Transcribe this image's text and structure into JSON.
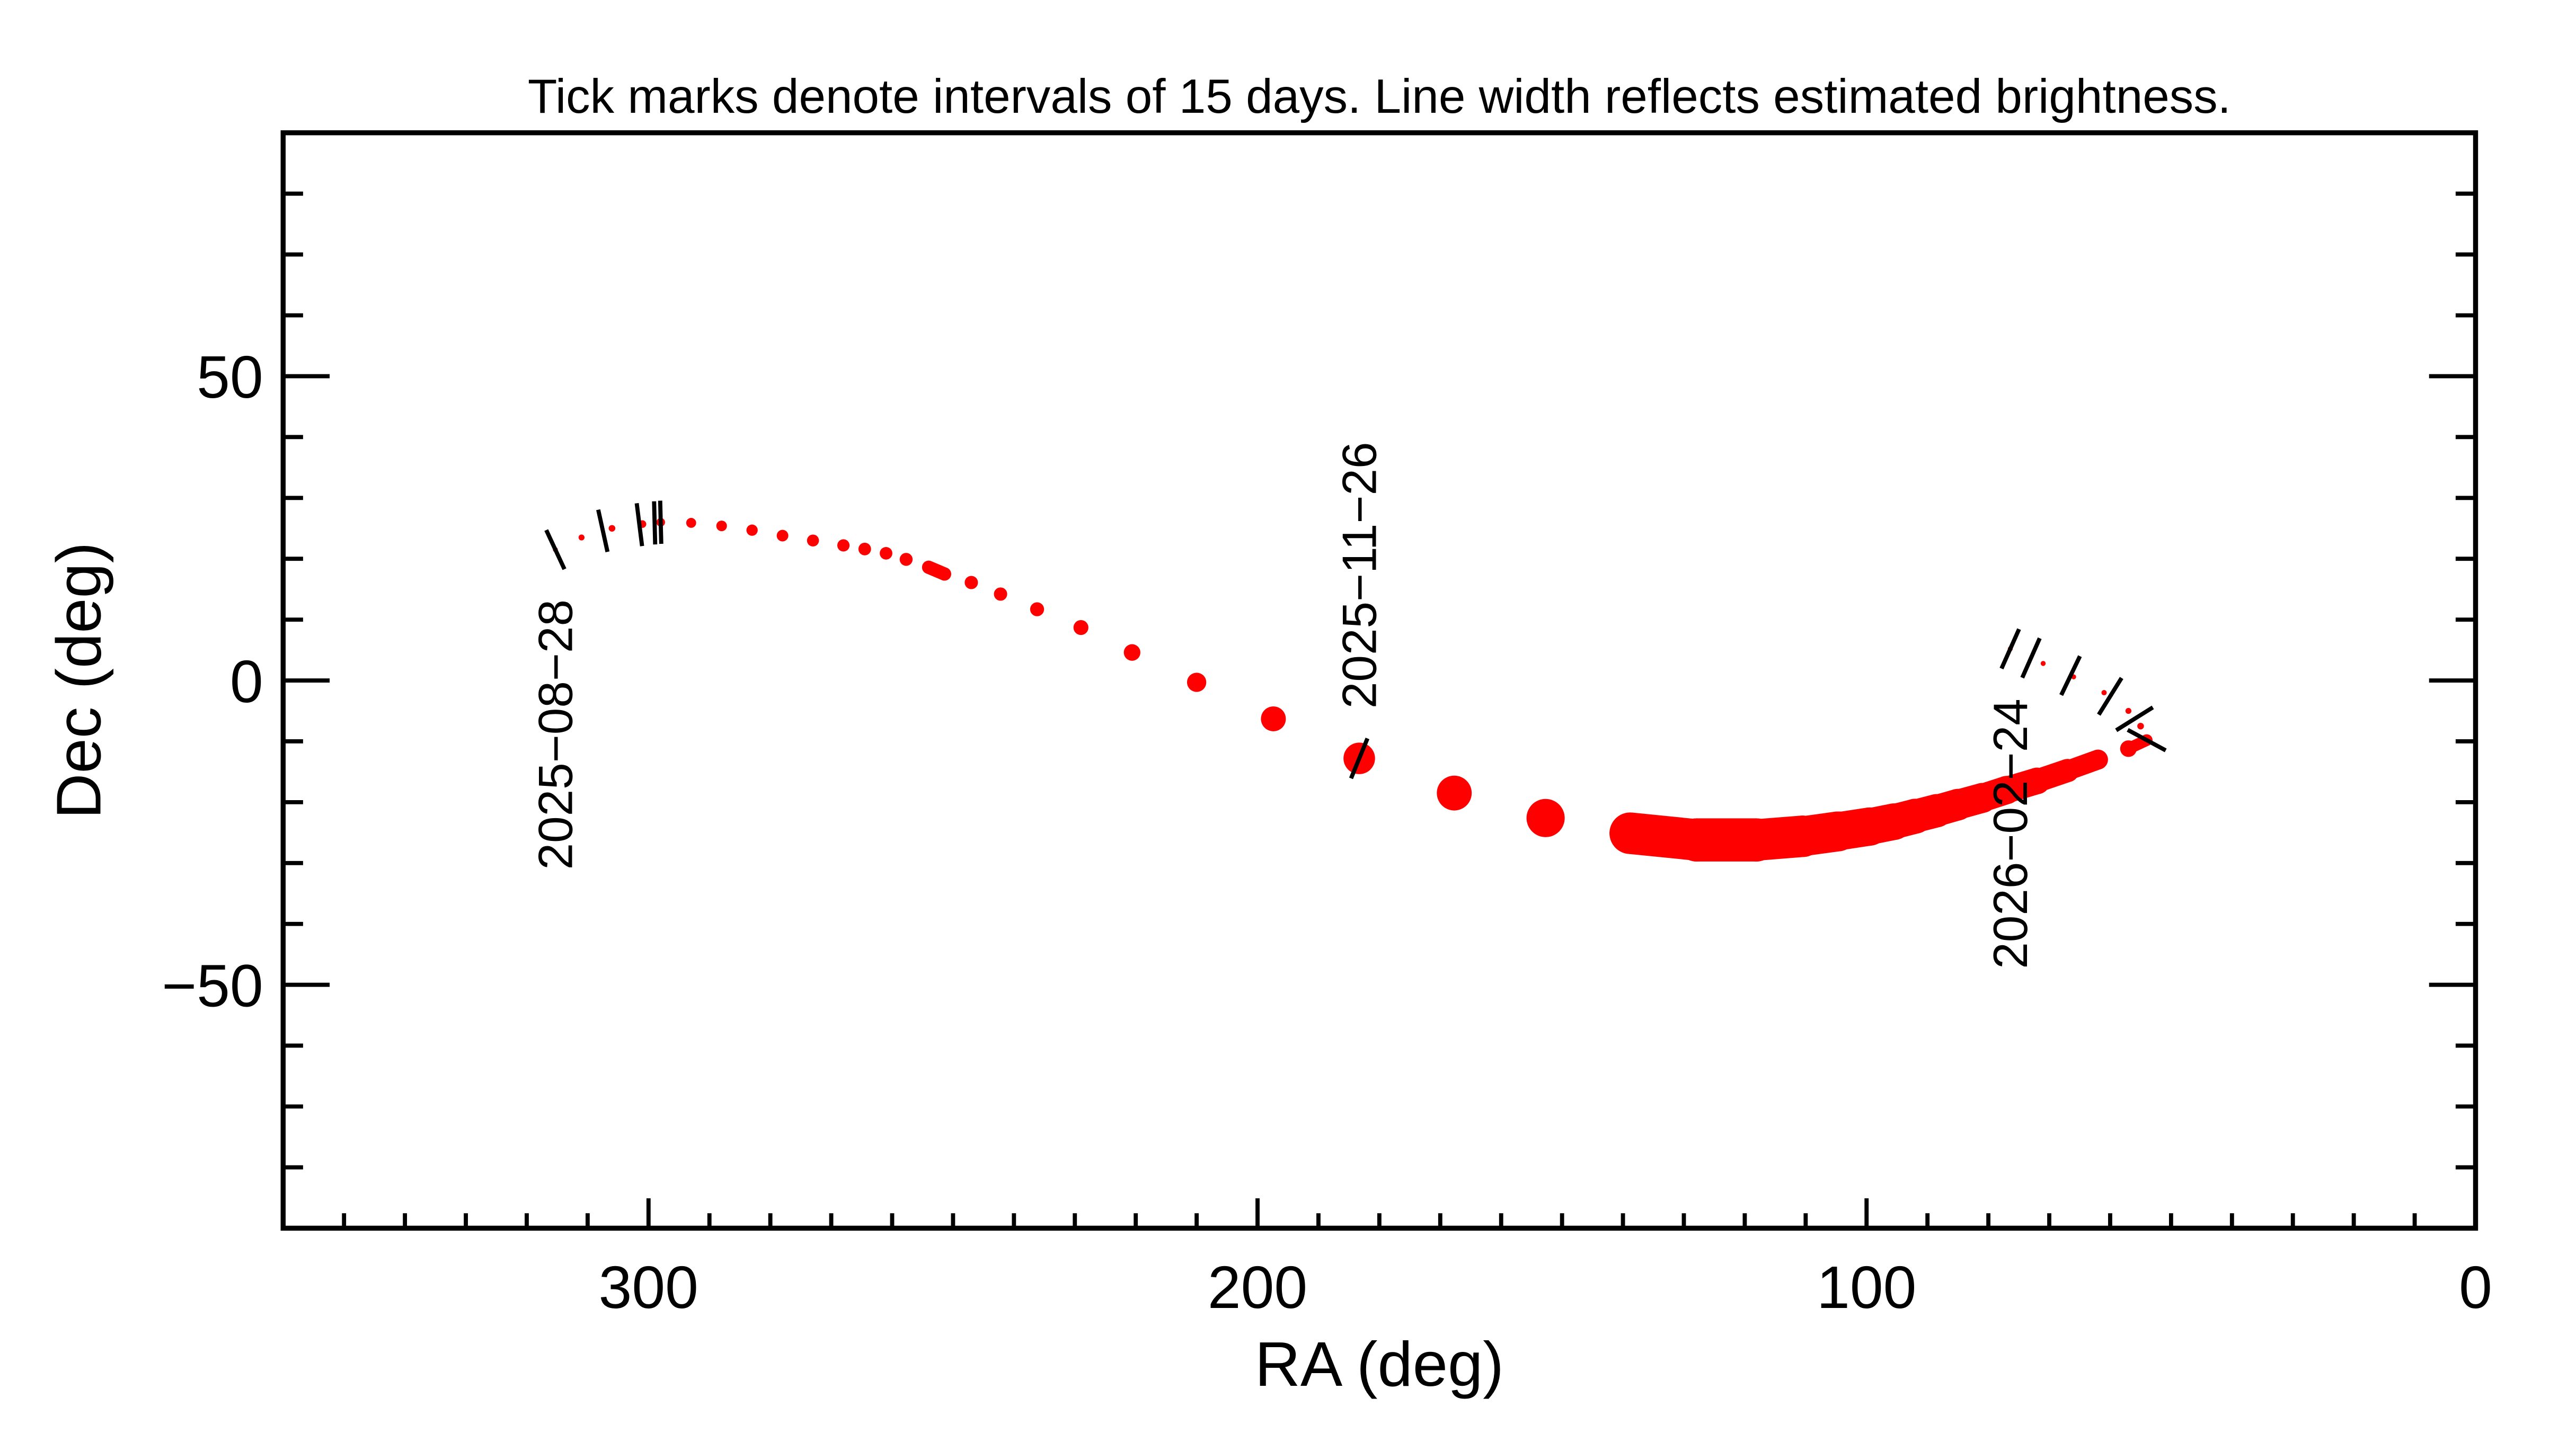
{
  "chart_data": {
    "type": "line",
    "title": "Tick marks denote intervals of 15 days.  Line width reflects estimated brightness.",
    "xlabel": "RA (deg)",
    "ylabel": "Dec (deg)",
    "xlim": [
      360,
      0
    ],
    "ylim": [
      -90,
      90
    ],
    "x_ticks": [
      300,
      200,
      100,
      0
    ],
    "x_tick_labels": [
      "300",
      "200",
      "100",
      "0"
    ],
    "y_ticks": [
      50,
      0,
      -50
    ],
    "y_tick_labels": [
      "50",
      "0",
      "−50"
    ],
    "x_minor_step": 10,
    "y_minor_step": 10,
    "grid": false,
    "track_color": "#ff0000",
    "tick_color": "#000000",
    "track": [
      {
        "ra": 315.3,
        "dec": 21.5,
        "width": 1.5
      },
      {
        "ra": 311,
        "dec": 23.5,
        "width": 1.8
      },
      {
        "ra": 306,
        "dec": 25.0,
        "width": 2.0
      },
      {
        "ra": 301,
        "dec": 25.7,
        "width": 2.3
      },
      {
        "ra": 298,
        "dec": 26.0,
        "width": 2.6
      },
      {
        "ra": 293,
        "dec": 25.9,
        "width": 3.0
      },
      {
        "ra": 288,
        "dec": 25.4,
        "width": 3.2
      },
      {
        "ra": 283,
        "dec": 24.7,
        "width": 3.4
      },
      {
        "ra": 278,
        "dec": 23.8,
        "width": 3.5
      },
      {
        "ra": 273,
        "dec": 23.0,
        "width": 3.6
      },
      {
        "ra": 268,
        "dec": 22.2,
        "width": 3.7
      },
      {
        "ra": 264.5,
        "dec": 21.6,
        "width": 3.8
      },
      {
        "ra": 261,
        "dec": 20.9,
        "width": 3.8
      },
      {
        "ra": 257.7,
        "dec": 19.9,
        "width": 3.9
      },
      {
        "ra": 254,
        "dec": 18.6,
        "width": 4.0
      },
      {
        "ra": 251.4,
        "dec": 17.5,
        "width": 4.0
      },
      {
        "ra": 247,
        "dec": 16.1,
        "width": 4.0
      },
      {
        "ra": 242.2,
        "dec": 14.2,
        "width": 4.0
      },
      {
        "ra": 236.2,
        "dec": 11.7,
        "width": 4.2
      },
      {
        "ra": 229,
        "dec": 8.7,
        "width": 4.5
      },
      {
        "ra": 220.6,
        "dec": 4.6,
        "width": 5.0
      },
      {
        "ra": 210,
        "dec": -0.3,
        "width": 5.8
      },
      {
        "ra": 197.4,
        "dec": -6.3,
        "width": 7.5
      },
      {
        "ra": 183.3,
        "dec": -12.8,
        "width": 9.5
      },
      {
        "ra": 167.7,
        "dec": -18.5,
        "width": 10.5
      },
      {
        "ra": 152.7,
        "dec": -22.6,
        "width": 11.5
      },
      {
        "ra": 138.8,
        "dec": -25.1,
        "width": 12.5
      },
      {
        "ra": 127.9,
        "dec": -26.2,
        "width": 13.0
      },
      {
        "ra": 118.1,
        "dec": -26.2,
        "width": 13.0
      },
      {
        "ra": 110.5,
        "dec": -25.6,
        "width": 12.5
      },
      {
        "ra": 104.7,
        "dec": -24.8,
        "width": 12.0
      },
      {
        "ra": 99.5,
        "dec": -24.0,
        "width": 11.5
      },
      {
        "ra": 95.5,
        "dec": -23.2,
        "width": 11.0
      },
      {
        "ra": 92,
        "dec": -22.3,
        "width": 10.5
      },
      {
        "ra": 88.5,
        "dec": -21.4,
        "width": 10.0
      },
      {
        "ra": 85,
        "dec": -20.4,
        "width": 9.5
      },
      {
        "ra": 81,
        "dec": -19.3,
        "width": 9.0
      },
      {
        "ra": 77,
        "dec": -18.0,
        "width": 8.5
      },
      {
        "ra": 72,
        "dec": -16.5,
        "width": 8.0
      },
      {
        "ra": 67,
        "dec": -14.8,
        "width": 7.0
      },
      {
        "ra": 62,
        "dec": -13.0,
        "width": 6.0
      },
      {
        "ra": 57,
        "dec": -11.2,
        "width": 5.0
      },
      {
        "ra": 54,
        "dec": -9.8,
        "width": 3.5
      },
      {
        "ra": 55,
        "dec": -7.5,
        "width": 2.0
      },
      {
        "ra": 57,
        "dec": -5.0,
        "width": 1.8
      },
      {
        "ra": 61,
        "dec": -2.0,
        "width": 1.6
      },
      {
        "ra": 66,
        "dec": 0.6,
        "width": 1.5
      },
      {
        "ra": 71,
        "dec": 2.8,
        "width": 1.5
      },
      {
        "ra": 76.4,
        "dec": 5.2,
        "width": 1.5
      }
    ],
    "date_ticks": [
      {
        "ra": 315.3,
        "dec": 21.5
      },
      {
        "ra": 307.5,
        "dec": 24.6
      },
      {
        "ra": 301.5,
        "dec": 25.6
      },
      {
        "ra": 299.0,
        "dec": 25.9
      },
      {
        "ra": 298.0,
        "dec": 26.0
      },
      {
        "ra": 183.3,
        "dec": -12.8
      },
      {
        "ra": 54.0,
        "dec": -9.8
      },
      {
        "ra": 56.0,
        "dec": -6.3
      },
      {
        "ra": 60.0,
        "dec": -2.6
      },
      {
        "ra": 66.5,
        "dec": 0.8
      },
      {
        "ra": 73.0,
        "dec": 3.7
      },
      {
        "ra": 76.4,
        "dec": 5.2
      }
    ],
    "date_labels": [
      {
        "text": "2025−08−28",
        "ra": 315.3,
        "dec": 21.5,
        "side": "below"
      },
      {
        "text": "2025−11−26",
        "ra": 183.3,
        "dec": -12.8,
        "side": "above"
      },
      {
        "text": "2026−02−24",
        "ra": 76.4,
        "dec": 5.2,
        "side": "below"
      }
    ]
  }
}
